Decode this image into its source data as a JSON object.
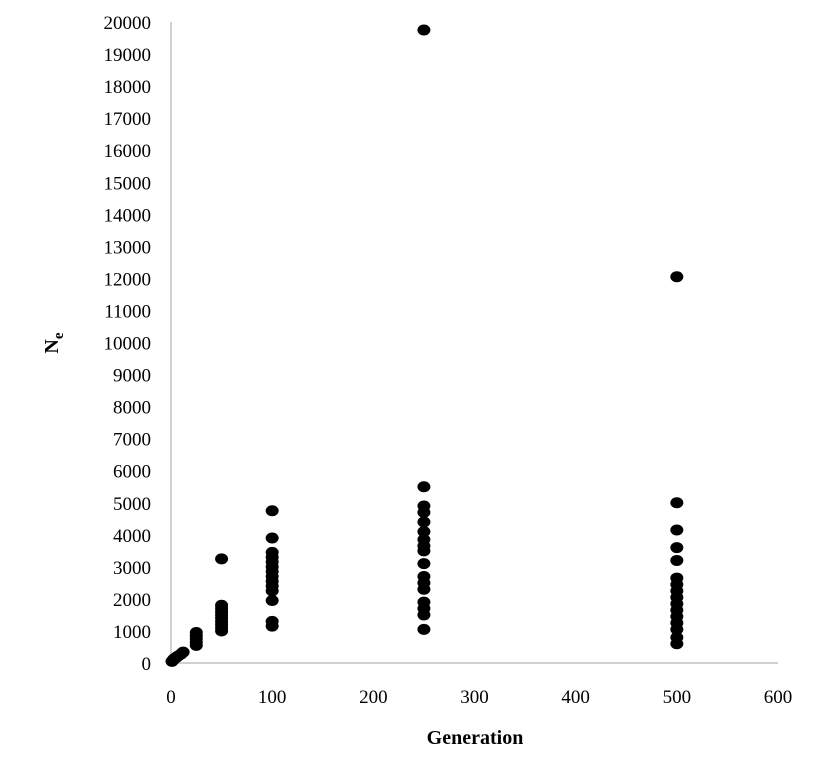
{
  "chart_data": {
    "type": "scatter",
    "xlabel": "Generation",
    "ylabel": "N",
    "ylabel_subscript": "e",
    "xlim": [
      0,
      600
    ],
    "ylim": [
      0,
      20000
    ],
    "x_ticks": [
      0,
      100,
      200,
      300,
      400,
      500,
      600
    ],
    "y_ticks": [
      0,
      1000,
      2000,
      3000,
      4000,
      5000,
      6000,
      7000,
      8000,
      9000,
      10000,
      11000,
      12000,
      13000,
      14000,
      15000,
      16000,
      17000,
      18000,
      19000,
      20000
    ],
    "grid": false,
    "legend": "none",
    "marker_color": "#000000",
    "axis_color": "#c0c0c0",
    "series": [
      {
        "points": [
          {
            "x": 1,
            "y": 50
          },
          {
            "x": 2,
            "y": 90
          },
          {
            "x": 3,
            "y": 130
          },
          {
            "x": 5,
            "y": 170
          },
          {
            "x": 7,
            "y": 220
          },
          {
            "x": 10,
            "y": 280
          },
          {
            "x": 12,
            "y": 340
          },
          {
            "x": 25,
            "y": 550
          },
          {
            "x": 25,
            "y": 650
          },
          {
            "x": 25,
            "y": 750
          },
          {
            "x": 25,
            "y": 850
          },
          {
            "x": 25,
            "y": 950
          },
          {
            "x": 50,
            "y": 1000
          },
          {
            "x": 50,
            "y": 1100
          },
          {
            "x": 50,
            "y": 1200
          },
          {
            "x": 50,
            "y": 1300
          },
          {
            "x": 50,
            "y": 1400
          },
          {
            "x": 50,
            "y": 1500
          },
          {
            "x": 50,
            "y": 1600
          },
          {
            "x": 50,
            "y": 1700
          },
          {
            "x": 50,
            "y": 1800
          },
          {
            "x": 50,
            "y": 3250
          },
          {
            "x": 100,
            "y": 1150
          },
          {
            "x": 100,
            "y": 1300
          },
          {
            "x": 100,
            "y": 1950
          },
          {
            "x": 100,
            "y": 2250
          },
          {
            "x": 100,
            "y": 2400
          },
          {
            "x": 100,
            "y": 2550
          },
          {
            "x": 100,
            "y": 2700
          },
          {
            "x": 100,
            "y": 2850
          },
          {
            "x": 100,
            "y": 3000
          },
          {
            "x": 100,
            "y": 3150
          },
          {
            "x": 100,
            "y": 3300
          },
          {
            "x": 100,
            "y": 3450
          },
          {
            "x": 100,
            "y": 3900
          },
          {
            "x": 100,
            "y": 4750
          },
          {
            "x": 250,
            "y": 1050
          },
          {
            "x": 250,
            "y": 1500
          },
          {
            "x": 250,
            "y": 1700
          },
          {
            "x": 250,
            "y": 1900
          },
          {
            "x": 250,
            "y": 2300
          },
          {
            "x": 250,
            "y": 2500
          },
          {
            "x": 250,
            "y": 2700
          },
          {
            "x": 250,
            "y": 3100
          },
          {
            "x": 250,
            "y": 3500
          },
          {
            "x": 250,
            "y": 3650
          },
          {
            "x": 250,
            "y": 3850
          },
          {
            "x": 250,
            "y": 4100
          },
          {
            "x": 250,
            "y": 4400
          },
          {
            "x": 250,
            "y": 4700
          },
          {
            "x": 250,
            "y": 4900
          },
          {
            "x": 250,
            "y": 5500
          },
          {
            "x": 250,
            "y": 19750
          },
          {
            "x": 500,
            "y": 600
          },
          {
            "x": 500,
            "y": 800
          },
          {
            "x": 500,
            "y": 1050
          },
          {
            "x": 500,
            "y": 1250
          },
          {
            "x": 500,
            "y": 1450
          },
          {
            "x": 500,
            "y": 1650
          },
          {
            "x": 500,
            "y": 1850
          },
          {
            "x": 500,
            "y": 2050
          },
          {
            "x": 500,
            "y": 2250
          },
          {
            "x": 500,
            "y": 2450
          },
          {
            "x": 500,
            "y": 2650
          },
          {
            "x": 500,
            "y": 3200
          },
          {
            "x": 500,
            "y": 3600
          },
          {
            "x": 500,
            "y": 4150
          },
          {
            "x": 500,
            "y": 5000
          },
          {
            "x": 500,
            "y": 12050
          }
        ]
      }
    ]
  }
}
